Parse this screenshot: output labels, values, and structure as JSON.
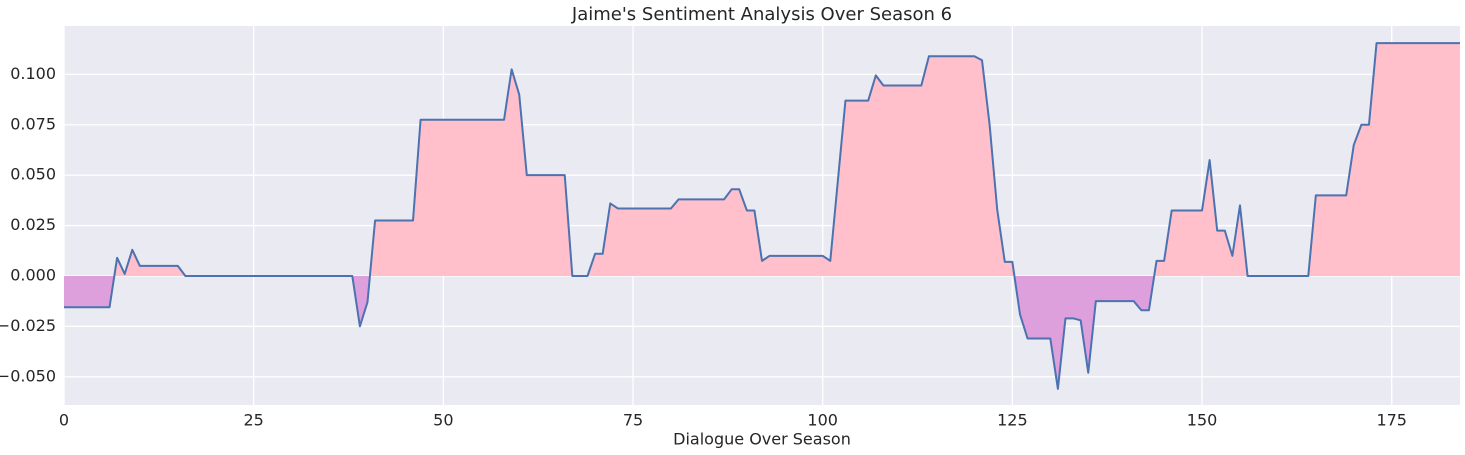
{
  "chart_data": {
    "type": "line",
    "title": "Jaime's Sentiment Analysis Over Season 6",
    "x_label": "Dialogue Over Season",
    "x": [
      0,
      6,
      7,
      8,
      9,
      10,
      15,
      16,
      38,
      39,
      40,
      41,
      46,
      47,
      58,
      59,
      60,
      61,
      66,
      67,
      69,
      70,
      71,
      72,
      73,
      80,
      81,
      87,
      88,
      89,
      90,
      91,
      92,
      93,
      100,
      101,
      103,
      106,
      107,
      108,
      113,
      114,
      120,
      121,
      122,
      123,
      124,
      125,
      126,
      127,
      130,
      131,
      132,
      133,
      134,
      135,
      136,
      141,
      142,
      143,
      144,
      145,
      146,
      150,
      151,
      152,
      153,
      154,
      155,
      156,
      164,
      165,
      169,
      170,
      171,
      172,
      173,
      184
    ],
    "series": [
      {
        "color": "#4c72b0",
        "positive_fill": "#ffc0cb",
        "negative_fill": "#dda0dd",
        "values": [
          -0.0155,
          -0.0155,
          0.009,
          0.001,
          0.013,
          0.005,
          0.005,
          0,
          0,
          -0.025,
          -0.013,
          0.0275,
          0.0275,
          0.0775,
          0.0775,
          0.1025,
          0.09,
          0.05,
          0.05,
          0,
          0,
          0.011,
          0.011,
          0.036,
          0.0335,
          0.0335,
          0.038,
          0.038,
          0.043,
          0.043,
          0.0325,
          0.0325,
          0.0075,
          0.01,
          0.01,
          0.0075,
          0.087,
          0.087,
          0.0995,
          0.0945,
          0.0945,
          0.109,
          0.109,
          0.107,
          0.075,
          0.033,
          0.007,
          0.007,
          -0.019,
          -0.031,
          -0.031,
          -0.056,
          -0.021,
          -0.021,
          -0.022,
          -0.048,
          -0.0125,
          -0.0125,
          -0.017,
          -0.017,
          0.0075,
          0.0075,
          0.0325,
          0.0325,
          0.0575,
          0.0225,
          0.0225,
          0.01,
          0.035,
          0,
          0,
          0.04,
          0.04,
          0.065,
          0.075,
          0.075,
          0.1155,
          0.1155
        ]
      }
    ],
    "xlim": [
      0,
      184
    ],
    "xticks": [
      0,
      25,
      50,
      75,
      100,
      125,
      150,
      175
    ],
    "ylim": [
      -0.064,
      0.124
    ],
    "yticks": [
      {
        "value": -0.05,
        "label": "−0.050"
      },
      {
        "value": -0.025,
        "label": "−0.025"
      },
      {
        "value": 0,
        "label": "0.000"
      },
      {
        "value": 0.025,
        "label": "0.025"
      },
      {
        "value": 0.05,
        "label": "0.050"
      },
      {
        "value": 0.075,
        "label": "0.075"
      },
      {
        "value": 0.1,
        "label": "0.100"
      }
    ],
    "grid": true,
    "background": "#eaeaf2"
  }
}
